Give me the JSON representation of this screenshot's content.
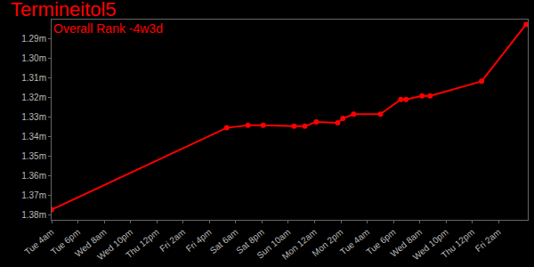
{
  "chart_data": {
    "type": "line",
    "title": "Termineitol5",
    "subtitle": "Overall Rank -4w3d",
    "x": [
      0,
      93.2,
      104.5,
      112.6,
      129.1,
      134.8,
      140.9,
      152.3,
      155.1,
      160.8,
      175.0,
      185.9,
      188.7,
      197.2,
      201.5,
      228.9,
      252.6
    ],
    "values": [
      1.3773,
      1.3354,
      1.3341,
      1.3341,
      1.3346,
      1.3346,
      1.3324,
      1.3328,
      1.3306,
      1.3284,
      1.3284,
      1.3209,
      1.3209,
      1.3191,
      1.3191,
      1.3116,
      1.2825
    ],
    "color": "#ff0000",
    "marker": "circle",
    "xlim": [
      0,
      253.5
    ],
    "xticks": [
      {
        "value": 0,
        "label": "Tue 4am"
      },
      {
        "value": 14,
        "label": "Tue 6pm"
      },
      {
        "value": 28,
        "label": "Wed 8am"
      },
      {
        "value": 42,
        "label": "Wed 10pm"
      },
      {
        "value": 56,
        "label": "Thu 12pm"
      },
      {
        "value": 70,
        "label": "Fri 2am"
      },
      {
        "value": 84,
        "label": "Fri 4pm"
      },
      {
        "value": 98,
        "label": "Sat 6am"
      },
      {
        "value": 112,
        "label": "Sat 8pm"
      },
      {
        "value": 126,
        "label": "Sun 10am"
      },
      {
        "value": 140,
        "label": "Mon 12am"
      },
      {
        "value": 154,
        "label": "Mon 2pm"
      },
      {
        "value": 168,
        "label": "Tue 4am"
      },
      {
        "value": 182,
        "label": "Tue 6pm"
      },
      {
        "value": 196,
        "label": "Wed 8am"
      },
      {
        "value": 210,
        "label": "Wed 10pm"
      },
      {
        "value": 224,
        "label": "Thu 12pm"
      },
      {
        "value": 238,
        "label": "Fri 2am"
      }
    ],
    "ylim": [
      1.3825,
      1.28
    ],
    "yticks": [
      {
        "value": 1.29,
        "label": "1.29m"
      },
      {
        "value": 1.3,
        "label": "1.30m"
      },
      {
        "value": 1.31,
        "label": "1.31m"
      },
      {
        "value": 1.32,
        "label": "1.32m"
      },
      {
        "value": 1.33,
        "label": "1.33m"
      },
      {
        "value": 1.34,
        "label": "1.34m"
      },
      {
        "value": 1.35,
        "label": "1.35m"
      },
      {
        "value": 1.36,
        "label": "1.36m"
      },
      {
        "value": 1.37,
        "label": "1.37m"
      },
      {
        "value": 1.38,
        "label": "1.38m"
      }
    ],
    "grid": false
  }
}
